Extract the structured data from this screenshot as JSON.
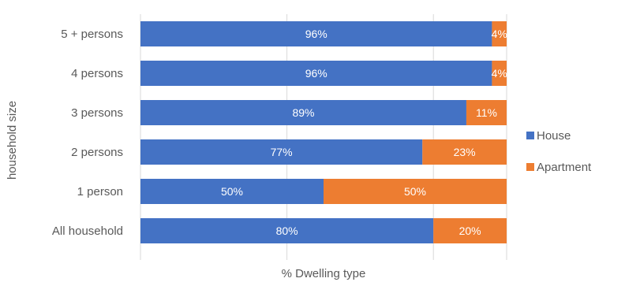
{
  "chart_data": {
    "type": "bar",
    "orientation": "horizontal",
    "stacked": true,
    "categories": [
      "5 + persons",
      "4 persons",
      "3 persons",
      "2 persons",
      "1 person",
      "All household"
    ],
    "series": [
      {
        "name": "House",
        "color": "#4472C4",
        "values": [
          96,
          96,
          89,
          77,
          50,
          80
        ],
        "labels": [
          "96%",
          "96%",
          "89%",
          "77%",
          "50%",
          "80%"
        ]
      },
      {
        "name": "Apartment",
        "color": "#ED7D31",
        "values": [
          4,
          4,
          11,
          23,
          50,
          20
        ],
        "labels": [
          "4%",
          "4%",
          "11%",
          "23%",
          "50%",
          "20%"
        ]
      }
    ],
    "xlabel": "% Dwelling type",
    "ylabel": "household size",
    "xlim": [
      0,
      100
    ],
    "grid": true,
    "legend_position": "right"
  }
}
